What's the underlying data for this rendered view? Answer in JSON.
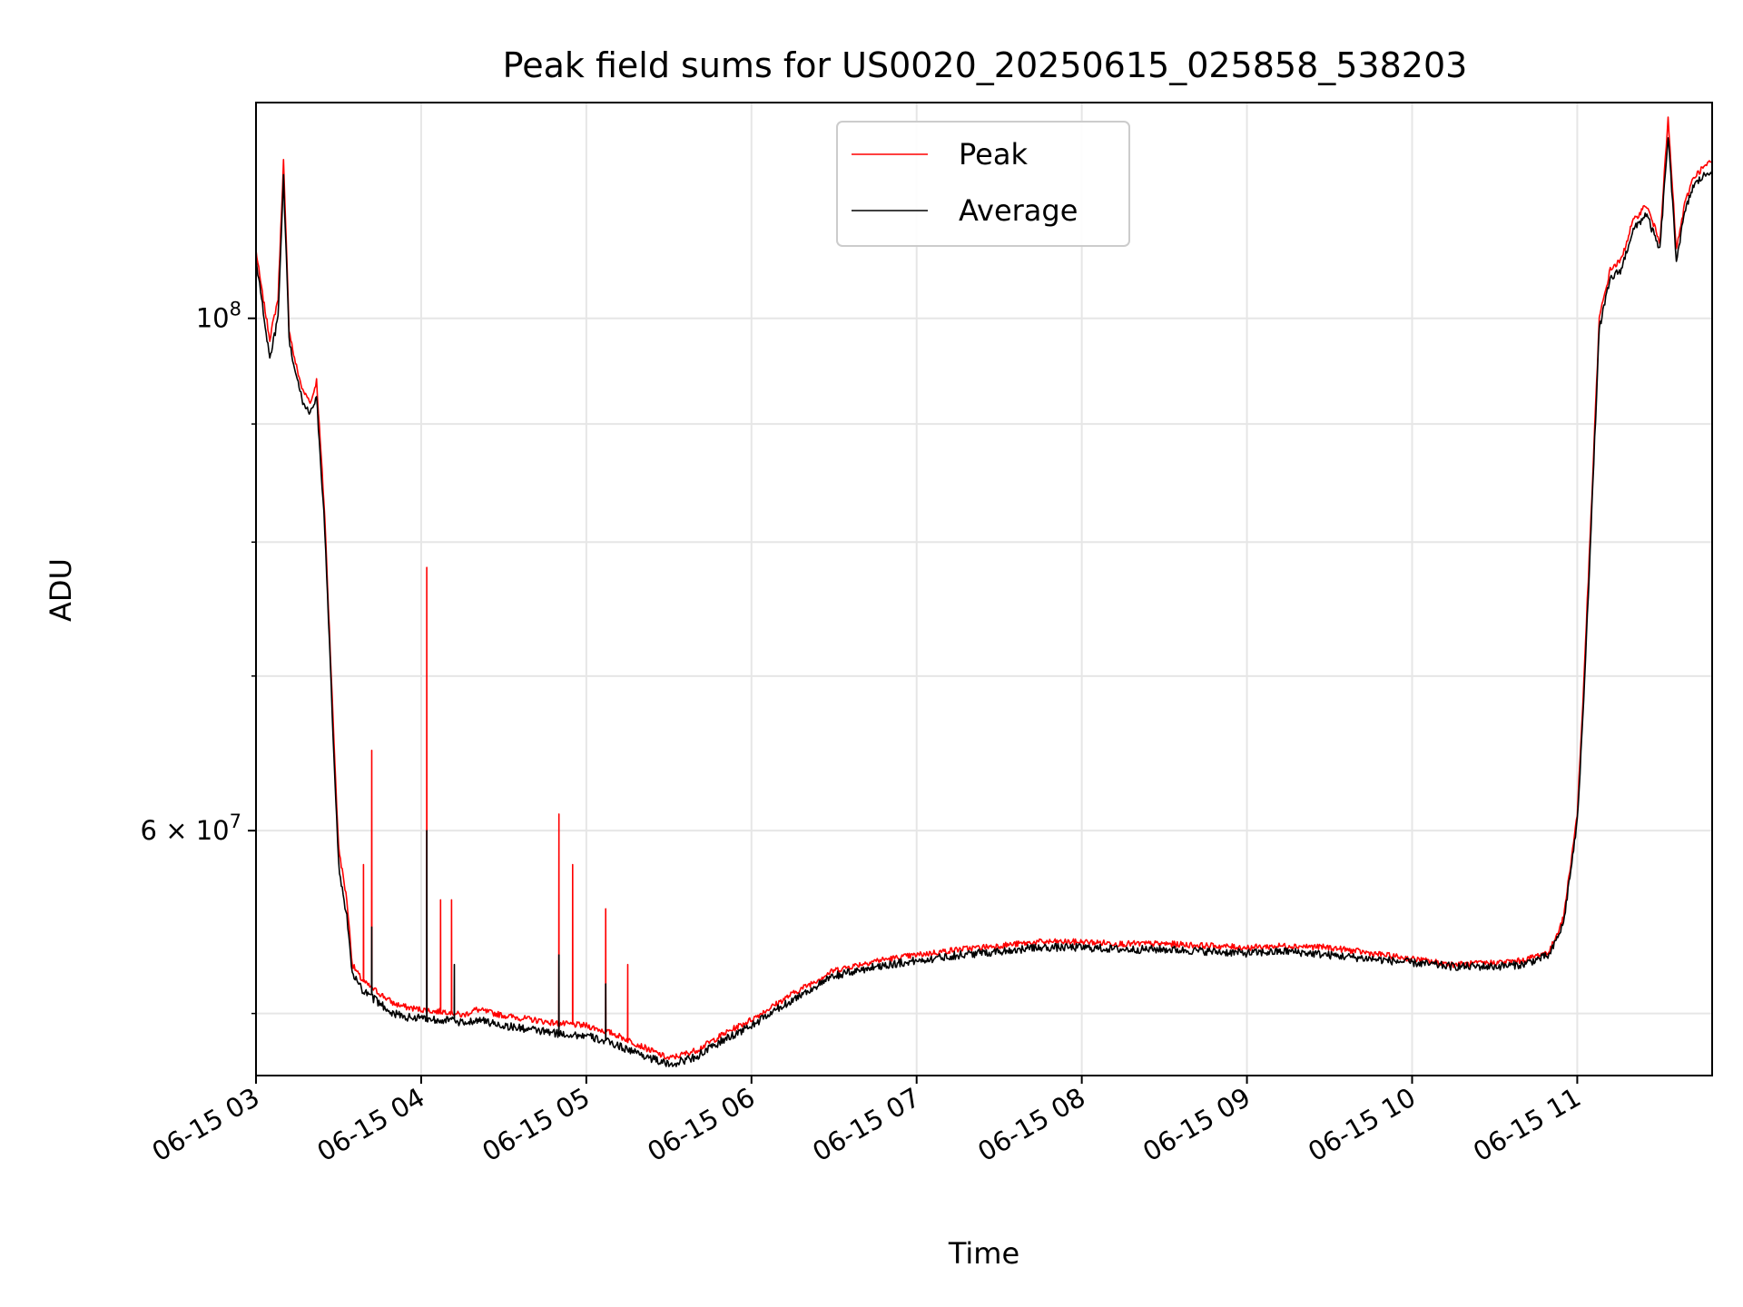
{
  "chart_data": {
    "type": "line",
    "title": "Peak field sums for US0020_20250615_025858_538203",
    "xlabel": "Time",
    "ylabel": "ADU",
    "y_scale": "log",
    "ylim": [
      47000000,
      124000000
    ],
    "xlim": [
      "06-15 03:00",
      "06-15 11:49"
    ],
    "x_ticks": [
      "06-15 03",
      "06-15 04",
      "06-15 05",
      "06-15 06",
      "06-15 07",
      "06-15 08",
      "06-15 09",
      "06-15 10",
      "06-15 11"
    ],
    "y_tick_labels": [
      {
        "value": 100000000,
        "base": "10",
        "exp": "8",
        "mant": ""
      },
      {
        "value": 60000000,
        "base": "10",
        "exp": "7",
        "mant": "6 × "
      }
    ],
    "grid": true,
    "legend_position": "top-center",
    "series": [
      {
        "name": "Peak",
        "color": "#ff0000",
        "x": [
          "06-15 03:00",
          "06-15 03:02",
          "06-15 03:05",
          "06-15 03:08",
          "06-15 03:10",
          "06-15 03:12",
          "06-15 03:14",
          "06-15 03:17",
          "06-15 03:20",
          "06-15 03:22",
          "06-15 03:25",
          "06-15 03:28",
          "06-15 03:30",
          "06-15 03:33",
          "06-15 03:35",
          "06-15 03:38",
          "06-15 03:40",
          "06-15 03:45",
          "06-15 03:50",
          "06-15 03:55",
          "06-15 04:00",
          "06-15 04:05",
          "06-15 04:10",
          "06-15 04:15",
          "06-15 04:20",
          "06-15 04:30",
          "06-15 04:40",
          "06-15 04:50",
          "06-15 05:00",
          "06-15 05:10",
          "06-15 05:20",
          "06-15 05:30",
          "06-15 05:40",
          "06-15 05:50",
          "06-15 06:00",
          "06-15 06:15",
          "06-15 06:30",
          "06-15 06:45",
          "06-15 07:00",
          "06-15 07:15",
          "06-15 07:30",
          "06-15 07:45",
          "06-15 08:00",
          "06-15 08:15",
          "06-15 08:30",
          "06-15 08:45",
          "06-15 09:00",
          "06-15 09:15",
          "06-15 09:30",
          "06-15 09:45",
          "06-15 10:00",
          "06-15 10:15",
          "06-15 10:30",
          "06-15 10:40",
          "06-15 10:50",
          "06-15 10:55",
          "06-15 11:00",
          "06-15 11:02",
          "06-15 11:05",
          "06-15 11:08",
          "06-15 11:12",
          "06-15 11:16",
          "06-15 11:20",
          "06-15 11:25",
          "06-15 11:30",
          "06-15 11:33",
          "06-15 11:36",
          "06-15 11:39",
          "06-15 11:42",
          "06-15 11:45",
          "06-15 11:49"
        ],
        "y": [
          107000000,
          103000000,
          98000000,
          102000000,
          117000000,
          99000000,
          96000000,
          93000000,
          92000000,
          94000000,
          82000000,
          67000000,
          59000000,
          56000000,
          52500000,
          51800000,
          51500000,
          51000000,
          50500000,
          50300000,
          50200000,
          50100000,
          50100000,
          49900000,
          50200000,
          49900000,
          49700000,
          49500000,
          49400000,
          49000000,
          48400000,
          47800000,
          48200000,
          49000000,
          49700000,
          51000000,
          52200000,
          52700000,
          53000000,
          53300000,
          53500000,
          53700000,
          53700000,
          53600000,
          53600000,
          53500000,
          53400000,
          53500000,
          53400000,
          53100000,
          52800000,
          52500000,
          52600000,
          52700000,
          53200000,
          55000000,
          61000000,
          68000000,
          82000000,
          100000000,
          105000000,
          106000000,
          110000000,
          112000000,
          108000000,
          122000000,
          107000000,
          112000000,
          115000000,
          116000000,
          117000000
        ],
        "spikes": [
          {
            "x": "06-15 03:39",
            "y": 58000000
          },
          {
            "x": "06-15 03:42",
            "y": 65000000
          },
          {
            "x": "06-15 04:02",
            "y": 78000000
          },
          {
            "x": "06-15 04:07",
            "y": 56000000
          },
          {
            "x": "06-15 04:11",
            "y": 56000000
          },
          {
            "x": "06-15 04:50",
            "y": 61000000
          },
          {
            "x": "06-15 04:55",
            "y": 58000000
          },
          {
            "x": "06-15 05:07",
            "y": 55500000
          },
          {
            "x": "06-15 05:15",
            "y": 52500000
          }
        ]
      },
      {
        "name": "Average",
        "color": "#000000",
        "x": [
          "06-15 03:00",
          "06-15 03:02",
          "06-15 03:05",
          "06-15 03:08",
          "06-15 03:10",
          "06-15 03:12",
          "06-15 03:14",
          "06-15 03:17",
          "06-15 03:20",
          "06-15 03:22",
          "06-15 03:25",
          "06-15 03:28",
          "06-15 03:30",
          "06-15 03:33",
          "06-15 03:35",
          "06-15 03:38",
          "06-15 03:40",
          "06-15 03:45",
          "06-15 03:50",
          "06-15 03:55",
          "06-15 04:00",
          "06-15 04:05",
          "06-15 04:10",
          "06-15 04:15",
          "06-15 04:20",
          "06-15 04:30",
          "06-15 04:40",
          "06-15 04:50",
          "06-15 05:00",
          "06-15 05:10",
          "06-15 05:20",
          "06-15 05:30",
          "06-15 05:40",
          "06-15 05:50",
          "06-15 06:00",
          "06-15 06:15",
          "06-15 06:30",
          "06-15 06:45",
          "06-15 07:00",
          "06-15 07:15",
          "06-15 07:30",
          "06-15 07:45",
          "06-15 08:00",
          "06-15 08:15",
          "06-15 08:30",
          "06-15 08:45",
          "06-15 09:00",
          "06-15 09:15",
          "06-15 09:30",
          "06-15 09:45",
          "06-15 10:00",
          "06-15 10:15",
          "06-15 10:30",
          "06-15 10:40",
          "06-15 10:50",
          "06-15 10:55",
          "06-15 11:00",
          "06-15 11:02",
          "06-15 11:05",
          "06-15 11:08",
          "06-15 11:12",
          "06-15 11:16",
          "06-15 11:20",
          "06-15 11:25",
          "06-15 11:30",
          "06-15 11:33",
          "06-15 11:36",
          "06-15 11:39",
          "06-15 11:42",
          "06-15 11:45",
          "06-15 11:49"
        ],
        "y": [
          106000000,
          102000000,
          96000000,
          100000000,
          115000000,
          98000000,
          95000000,
          92000000,
          91000000,
          92500000,
          81000000,
          66000000,
          58000000,
          55000000,
          52000000,
          51300000,
          51000000,
          50500000,
          50000000,
          49800000,
          49800000,
          49700000,
          49700000,
          49500000,
          49700000,
          49400000,
          49200000,
          49000000,
          48900000,
          48500000,
          48000000,
          47500000,
          47900000,
          48700000,
          49400000,
          50700000,
          51900000,
          52400000,
          52700000,
          53000000,
          53200000,
          53400000,
          53400000,
          53300000,
          53300000,
          53200000,
          53100000,
          53200000,
          53000000,
          52800000,
          52600000,
          52400000,
          52400000,
          52500000,
          53000000,
          54700000,
          60500000,
          67000000,
          81000000,
          99000000,
          104000000,
          105000000,
          109000000,
          111000000,
          107000000,
          120000000,
          106000000,
          111000000,
          114000000,
          115000000,
          116000000
        ],
        "spikes": [
          {
            "x": "06-15 03:42",
            "y": 54500000
          },
          {
            "x": "06-15 04:02",
            "y": 60000000
          },
          {
            "x": "06-15 04:12",
            "y": 52500000
          },
          {
            "x": "06-15 04:50",
            "y": 53000000
          },
          {
            "x": "06-15 05:07",
            "y": 51500000
          }
        ]
      }
    ]
  }
}
